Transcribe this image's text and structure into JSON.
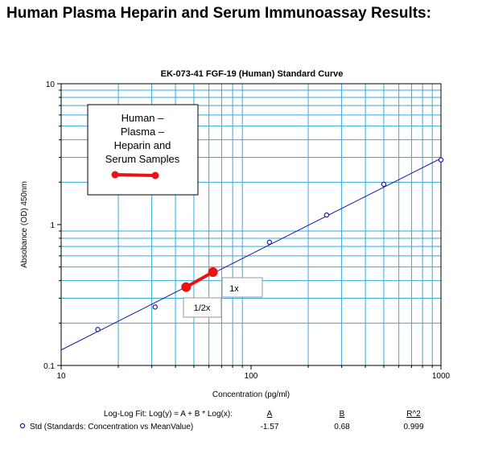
{
  "page": {
    "heading": "Human Plasma Heparin and Serum Immunoassay Results:"
  },
  "chart_data": {
    "type": "scatter",
    "title": "EK-073-41 FGF-19 (Human) Standard Curve",
    "xlabel": "Concentration (pg/ml)",
    "ylabel": "Absobance (OD) 450nm",
    "x_scale": "log",
    "y_scale": "log",
    "xlim": [
      10,
      1000
    ],
    "ylim": [
      0.1,
      10
    ],
    "x_tick_labels": [
      "10",
      "100",
      "1000"
    ],
    "y_tick_labels": [
      "0.1",
      "1",
      "10"
    ],
    "grid": true,
    "grid_color": "#33aadd",
    "fit_line_color": "#1a1aa6",
    "standards": {
      "name": "Std (Standards: Concentration vs MeanValue)",
      "color": "#1a1aa6",
      "x": [
        15.6,
        31.25,
        125,
        250,
        500,
        1000
      ],
      "y": [
        0.18,
        0.26,
        0.75,
        1.17,
        1.93,
        2.88
      ]
    },
    "fit": {
      "A": -1.57,
      "B": 0.68
    },
    "samples": {
      "color": "#ee1111",
      "x": [
        45.5,
        63
      ],
      "y": [
        0.36,
        0.46
      ],
      "labels": [
        "1/2x",
        "1x"
      ]
    },
    "legend": {
      "placement": "top-left",
      "lines": [
        "Human –",
        "Plasma –",
        "Heparin and",
        "Serum Samples"
      ]
    },
    "fit_table": {
      "header": "Log-Log Fit: Log(y) = A + B * Log(x):",
      "columns": [
        "A",
        "B",
        "R^2"
      ],
      "row_label": "Std (Standards: Concentration vs MeanValue)",
      "values": [
        "-1.57",
        "0.68",
        "0.999"
      ]
    }
  }
}
